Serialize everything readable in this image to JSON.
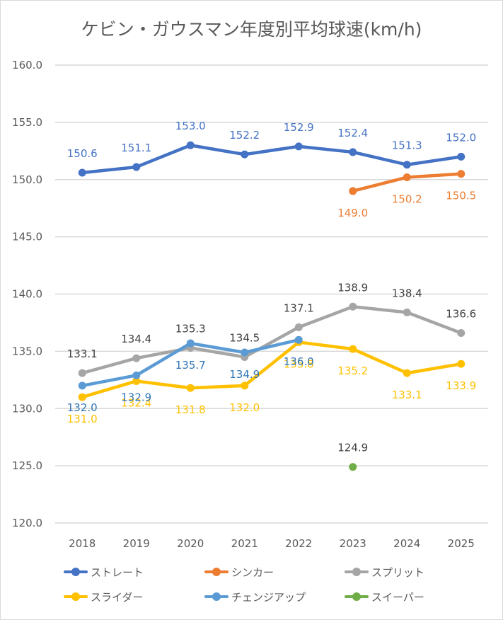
{
  "chart_data": {
    "type": "line",
    "title": "ケビン・ガウスマン年度別平均球速(km/h)",
    "xlabel": "",
    "ylabel": "",
    "categories": [
      "2018",
      "2019",
      "2020",
      "2021",
      "2022",
      "2023",
      "2024",
      "2025"
    ],
    "ylim": [
      120.0,
      160.0
    ],
    "yticks": [
      "120.0",
      "125.0",
      "130.0",
      "135.0",
      "140.0",
      "145.0",
      "150.0",
      "155.0",
      "160.0"
    ],
    "grid": true,
    "legend_position": "bottom",
    "series": [
      {
        "name": "ストレート",
        "color": "#4472C4",
        "label_color": "#4472C4",
        "values": [
          150.6,
          151.1,
          153.0,
          152.2,
          152.9,
          152.4,
          151.3,
          152.0
        ],
        "labels": [
          "150.6",
          "151.1",
          "153.0",
          "152.2",
          "152.9",
          "152.4",
          "151.3",
          "152.0"
        ],
        "label_pos": "above"
      },
      {
        "name": "シンカー",
        "color": "#ED7D31",
        "label_color": "#ED7D31",
        "values": [
          null,
          null,
          null,
          null,
          null,
          149.0,
          150.2,
          150.5
        ],
        "labels": [
          "",
          "",
          "",
          "",
          "",
          "149.0",
          "150.2",
          "150.5"
        ],
        "label_pos": "below"
      },
      {
        "name": "スプリット",
        "color": "#A5A5A5",
        "label_color": "#404040",
        "values": [
          133.1,
          134.4,
          135.3,
          134.5,
          137.1,
          138.9,
          138.4,
          136.6
        ],
        "labels": [
          "133.1",
          "134.4",
          "135.3",
          "134.5",
          "137.1",
          "138.9",
          "138.4",
          "136.6"
        ],
        "label_pos": "above"
      },
      {
        "name": "スライダー",
        "color": "#FFC000",
        "label_color": "#FFC000",
        "values": [
          131.0,
          132.4,
          131.8,
          132.0,
          135.8,
          135.2,
          133.1,
          133.9
        ],
        "labels": [
          "131.0",
          "132.4",
          "131.8",
          "132.0",
          "135.8",
          "135.2",
          "133.1",
          "133.9"
        ],
        "label_pos": "below"
      },
      {
        "name": "チェンジアップ",
        "color": "#5B9BD5",
        "label_color": "#2E75B6",
        "values": [
          132.0,
          132.9,
          135.7,
          134.9,
          136.0,
          null,
          null,
          null
        ],
        "labels": [
          "132.0",
          "132.9",
          "135.7",
          "134.9",
          "136.0",
          "",
          "",
          ""
        ],
        "label_pos": "below"
      },
      {
        "name": "スイーパー",
        "color": "#70AD47",
        "label_color": "#404040",
        "values": [
          null,
          null,
          null,
          null,
          null,
          124.9,
          null,
          null
        ],
        "labels": [
          "",
          "",
          "",
          "",
          "",
          "124.9",
          "",
          ""
        ],
        "label_pos": "above"
      }
    ]
  }
}
